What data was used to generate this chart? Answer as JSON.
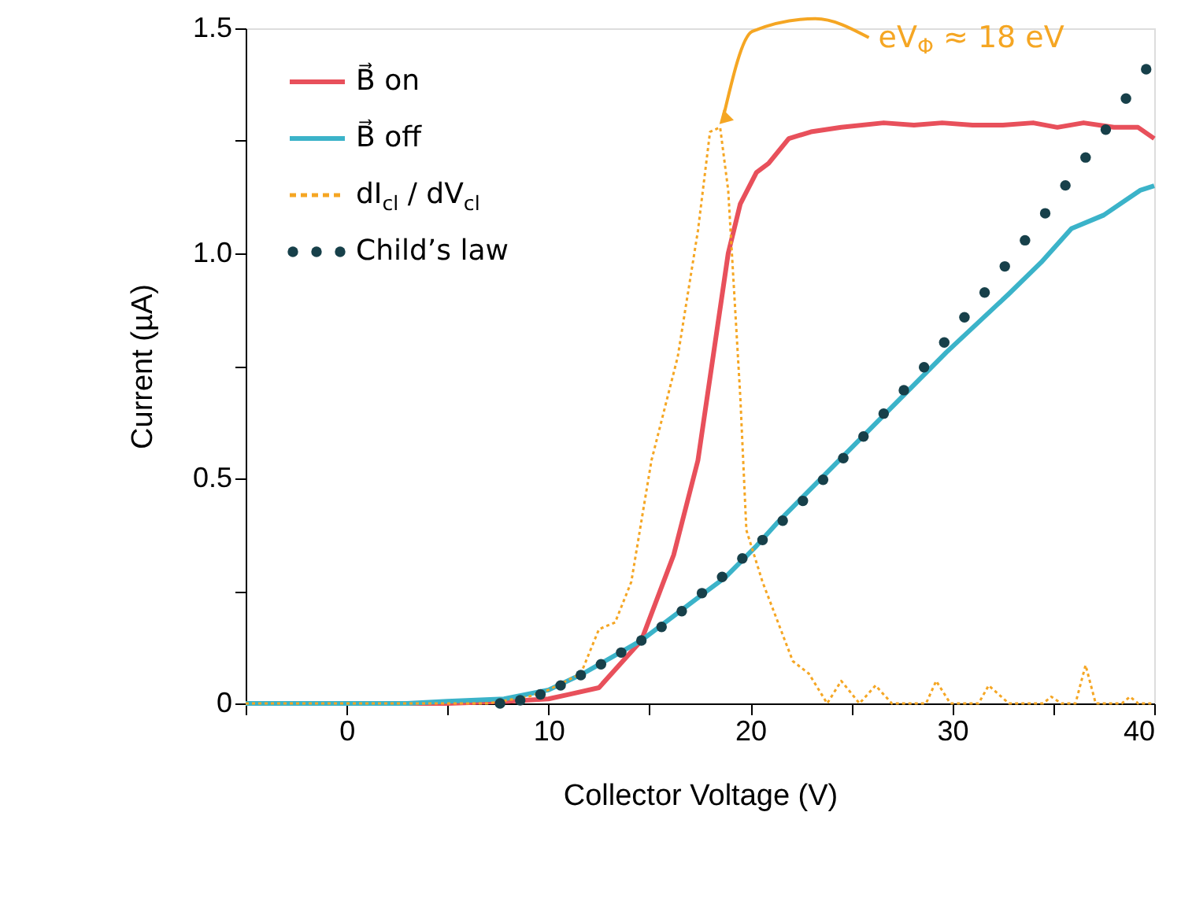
{
  "chart_data": {
    "type": "line",
    "xlabel": "Collector Voltage (V)",
    "ylabel": "Current (µA)",
    "xlim": [
      -5,
      40
    ],
    "ylim": [
      0,
      1.5
    ],
    "xticks": [
      {
        "value": -5,
        "label": null
      },
      0,
      {
        "value": 5,
        "label": null
      },
      10,
      {
        "value": 15,
        "label": null
      },
      20,
      {
        "value": 25,
        "label": null
      },
      30,
      {
        "value": 35,
        "label": null
      },
      40
    ],
    "yticks": [
      0,
      {
        "value": 0.25,
        "label": null
      },
      0.5,
      {
        "value": 0.75,
        "label": null
      },
      {
        "value": 1,
        "label": "1.0"
      },
      {
        "value": 1.25,
        "label": null
      },
      1.5
    ],
    "grid": false,
    "legend": "top left",
    "series": [
      {
        "name": "B⃗ on",
        "color": "#e8505b",
        "line_style": "solid",
        "x": [
          -5,
          0,
          5,
          8,
          10,
          11,
          12.5,
          14.6,
          16.2,
          17.4,
          18.9,
          19.5,
          20.3,
          20.9,
          21.9,
          23.0,
          24.5,
          26.6,
          28.1,
          29.5,
          31.0,
          32.5,
          34.0,
          35.2,
          36.5,
          38.0,
          39.2,
          40
        ],
        "values": [
          0,
          0,
          0,
          0.005,
          0.01,
          0.02,
          0.035,
          0.14,
          0.33,
          0.54,
          1.0,
          1.11,
          1.18,
          1.2,
          1.255,
          1.27,
          1.28,
          1.29,
          1.285,
          1.29,
          1.285,
          1.285,
          1.29,
          1.28,
          1.29,
          1.28,
          1.28,
          1.255
        ]
      },
      {
        "name": "B⃗ off",
        "color": "#3bb3c9",
        "line_style": "solid",
        "x": [
          -5,
          0,
          3,
          5,
          7.8,
          10,
          11.7,
          14.6,
          17.7,
          18.75,
          20.3,
          21.3,
          26.6,
          29.7,
          32.8,
          34.4,
          35.9,
          37.5,
          39.3,
          40
        ],
        "values": [
          0,
          0,
          0,
          0.005,
          0.01,
          0.03,
          0.066,
          0.14,
          0.245,
          0.28,
          0.35,
          0.4,
          0.64,
          0.78,
          0.91,
          0.98,
          1.055,
          1.085,
          1.14,
          1.15
        ]
      },
      {
        "name": "dI$_{cl}$ / dV$_{cl}$",
        "color": "#f5a623",
        "line_style": "dotted",
        "x": [
          -5,
          0,
          7,
          9,
          10,
          11.6,
          12.5,
          13.3,
          14.1,
          15.1,
          16.4,
          17.4,
          18.0,
          18.5,
          18.9,
          19.5,
          19.8,
          20.6,
          22.1,
          22.9,
          23.8,
          24.5,
          25.4,
          26.2,
          27.0,
          28.7,
          29.2,
          29.9,
          31.3,
          31.8,
          32.8,
          34.5,
          34.9,
          35.4,
          36.1,
          36.6,
          37.1,
          38.4,
          38.8,
          39.2,
          40
        ],
        "values": [
          0,
          0,
          0,
          0.015,
          0.03,
          0.066,
          0.165,
          0.18,
          0.27,
          0.54,
          0.77,
          1.05,
          1.27,
          1.28,
          1.14,
          0.68,
          0.385,
          0.27,
          0.094,
          0.066,
          0,
          0.05,
          0,
          0.04,
          0,
          0,
          0.05,
          0,
          0,
          0.04,
          0,
          0,
          0.015,
          0,
          0,
          0.085,
          0,
          0,
          0.015,
          0,
          0
        ]
      },
      {
        "name": "Child’s law",
        "color": "#17404a",
        "type": "scatter",
        "marker": "circle",
        "x": [
          7.6,
          8.6,
          9.6,
          10.6,
          11.6,
          12.6,
          13.6,
          14.6,
          15.6,
          16.6,
          17.6,
          18.6,
          19.6,
          20.6,
          21.6,
          22.6,
          23.6,
          24.6,
          25.6,
          26.6,
          27.6,
          28.6,
          29.6,
          30.6,
          31.6,
          32.6,
          33.6,
          34.6,
          35.6,
          36.6,
          37.6,
          38.6,
          39.6
        ],
        "values": [
          0,
          0.007,
          0.02,
          0.04,
          0.063,
          0.087,
          0.113,
          0.14,
          0.17,
          0.205,
          0.245,
          0.281,
          0.322,
          0.363,
          0.406,
          0.45,
          0.497,
          0.545,
          0.593,
          0.644,
          0.696,
          0.747,
          0.802,
          0.858,
          0.913,
          0.971,
          1.029,
          1.089,
          1.151,
          1.213,
          1.275,
          1.344,
          1.409
        ]
      }
    ],
    "annotations": [
      {
        "text": "eV$_{Φ}$ ≈ 18 eV",
        "x": 18.3,
        "y": 1.28
      }
    ]
  }
}
